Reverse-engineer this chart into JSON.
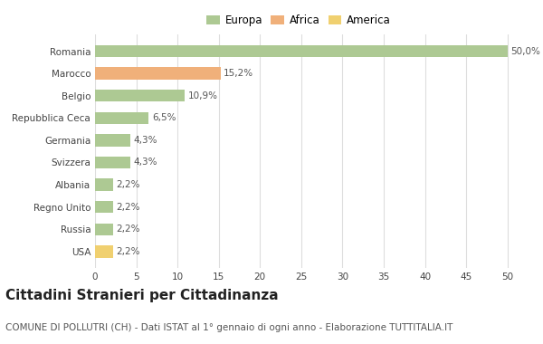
{
  "categories": [
    "Romania",
    "Marocco",
    "Belgio",
    "Repubblica Ceca",
    "Germania",
    "Svizzera",
    "Albania",
    "Regno Unito",
    "Russia",
    "USA"
  ],
  "values": [
    50.0,
    15.2,
    10.9,
    6.5,
    4.3,
    4.3,
    2.2,
    2.2,
    2.2,
    2.2
  ],
  "colors": [
    "#adc993",
    "#f0b07a",
    "#adc993",
    "#adc993",
    "#adc993",
    "#adc993",
    "#adc993",
    "#adc993",
    "#adc993",
    "#f0d070"
  ],
  "labels": [
    "50,0%",
    "15,2%",
    "10,9%",
    "6,5%",
    "4,3%",
    "4,3%",
    "2,2%",
    "2,2%",
    "2,2%",
    "2,2%"
  ],
  "legend": [
    {
      "label": "Europa",
      "color": "#adc993"
    },
    {
      "label": "Africa",
      "color": "#f0b07a"
    },
    {
      "label": "America",
      "color": "#f0d070"
    }
  ],
  "xlim": [
    0,
    52
  ],
  "xticks": [
    0,
    5,
    10,
    15,
    20,
    25,
    30,
    35,
    40,
    45,
    50
  ],
  "title": "Cittadini Stranieri per Cittadinanza",
  "subtitle": "COMUNE DI POLLUTRI (CH) - Dati ISTAT al 1° gennaio di ogni anno - Elaborazione TUTTITALIA.IT",
  "background_color": "#ffffff",
  "grid_color": "#dddddd",
  "bar_height": 0.55,
  "title_fontsize": 11,
  "subtitle_fontsize": 7.5,
  "label_fontsize": 7.5,
  "tick_fontsize": 7.5,
  "legend_fontsize": 8.5
}
